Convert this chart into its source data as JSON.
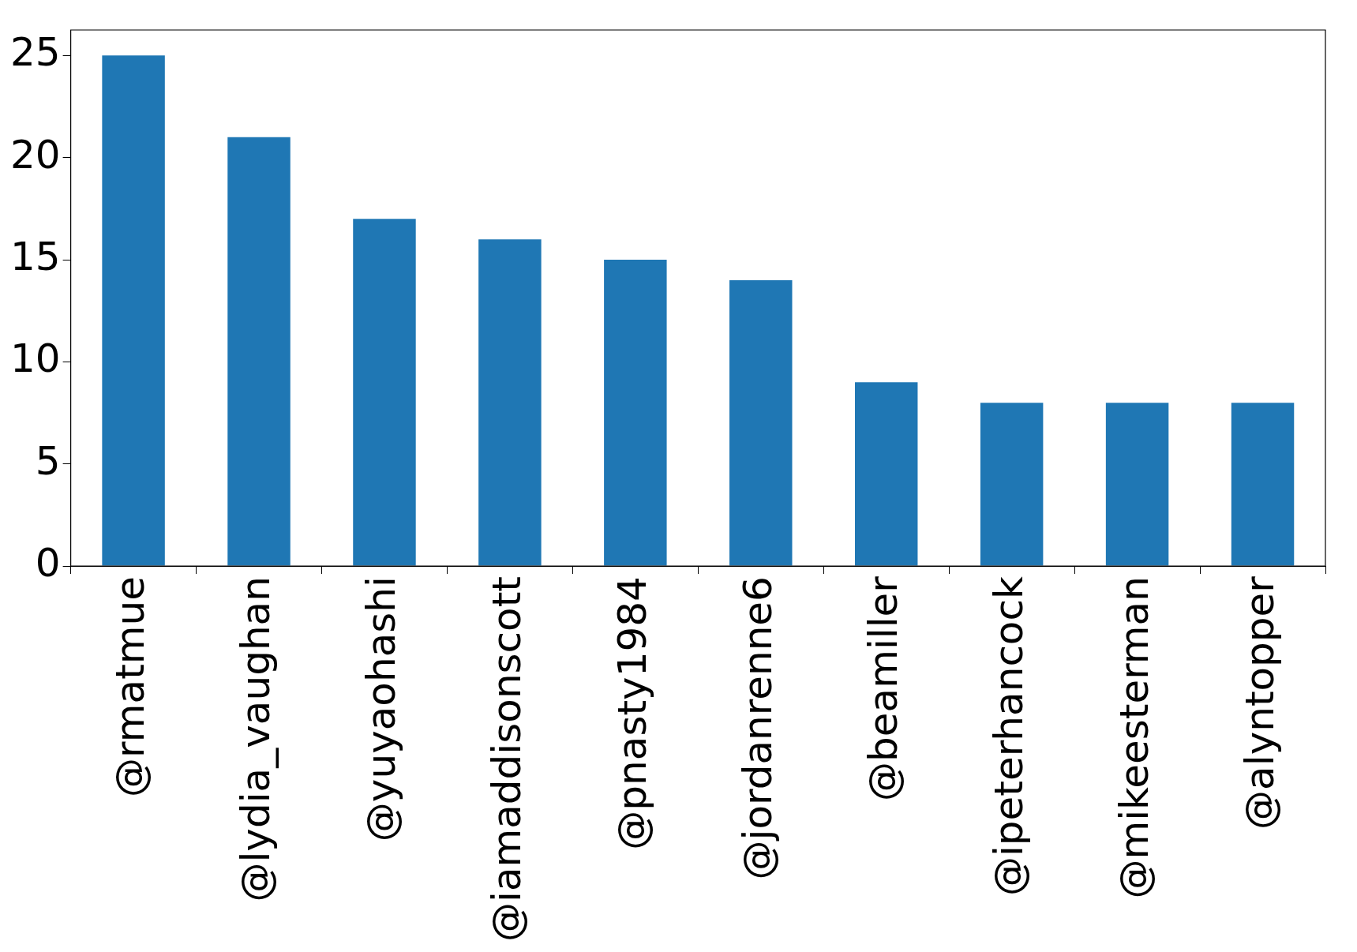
{
  "chart_data": {
    "type": "bar",
    "categories": [
      "@rmatmue",
      "@lydia_vaughan",
      "@yuyaohashi",
      "@iamaddisonscott",
      "@pnasty1984",
      "@jordanrenne6",
      "@beamiller",
      "@ipeterhancock",
      "@mikeesterman",
      "@alyntopper"
    ],
    "values": [
      25,
      21,
      17,
      16,
      15,
      14,
      9,
      8,
      8,
      8
    ],
    "color": "#1f77b4",
    "ylim": [
      0,
      26.25
    ],
    "yticks": [
      0,
      5,
      10,
      15,
      20,
      25
    ],
    "grid": false,
    "legend": false
  }
}
